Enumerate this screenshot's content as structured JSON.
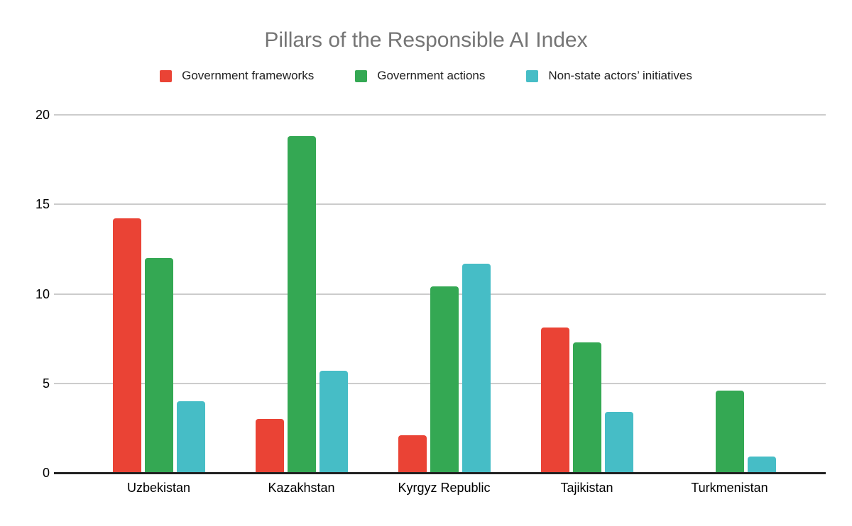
{
  "title": "Pillars of the Responsible AI Index",
  "colors": {
    "series_red": "#EA4335",
    "series_green": "#34A853",
    "series_teal": "#46BDC6",
    "title_gray": "#757575",
    "gridline": "#cccccc",
    "axis": "#212121",
    "background": "#ffffff"
  },
  "chart_data": {
    "type": "bar",
    "title": "Pillars of the Responsible AI Index",
    "categories": [
      "Uzbekistan",
      "Kazakhstan",
      "Kyrgyz Republic",
      "Tajikistan",
      "Turkmenistan"
    ],
    "series": [
      {
        "name": "Government frameworks",
        "color": "#EA4335",
        "values": [
          14.2,
          3.0,
          2.1,
          8.1,
          0
        ]
      },
      {
        "name": "Government actions",
        "color": "#34A853",
        "values": [
          12.0,
          18.8,
          10.4,
          7.3,
          4.6
        ]
      },
      {
        "name": "Non-state actors’ initiatives",
        "color": "#46BDC6",
        "values": [
          4.0,
          5.7,
          11.7,
          3.4,
          0.9
        ]
      }
    ],
    "xlabel": "",
    "ylabel": "",
    "ylim": [
      0,
      20
    ],
    "yticks": [
      0,
      5,
      10,
      15,
      20
    ],
    "grid": true,
    "legend_position": "top"
  }
}
